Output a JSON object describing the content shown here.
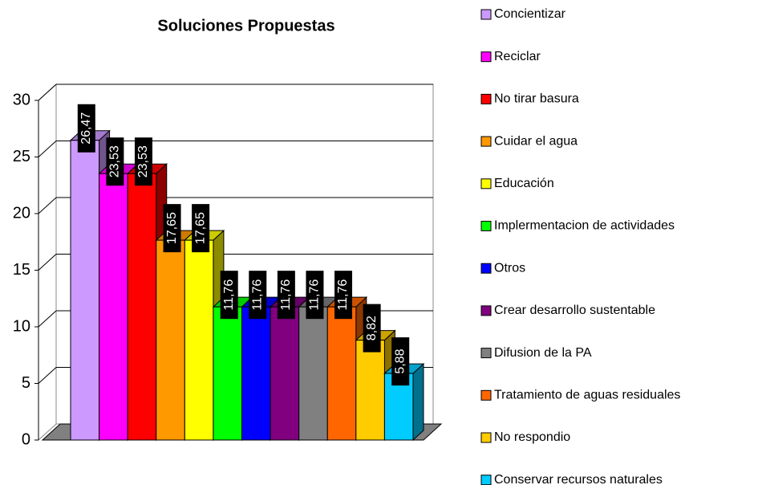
{
  "chart_data": {
    "type": "bar3d",
    "title": "Soluciones Propuestas",
    "categories": [
      "Concientizar",
      "Reciclar",
      "No tirar basura",
      "Cuidar el agua",
      "Educación",
      "Implermentacion de actividades",
      "Otros",
      "Crear desarrollo sustentable",
      "Difusion de la PA",
      "Tratamiento de aguas residuales",
      "No respondio",
      "Conservar recursos naturales"
    ],
    "values": [
      26.47,
      23.53,
      23.53,
      17.65,
      17.65,
      11.76,
      11.76,
      11.76,
      11.76,
      11.76,
      8.82,
      5.88
    ],
    "value_labels": [
      "26,47",
      "23,53",
      "23,53",
      "17,65",
      "17,65",
      "11,76",
      "11,76",
      "11,76",
      "11,76",
      "11,76",
      "8,82",
      "5,88"
    ],
    "colors": [
      "#cc99ff",
      "#ff00ff",
      "#ff0000",
      "#ff9900",
      "#ffff00",
      "#00ff00",
      "#0000ff",
      "#800080",
      "#808080",
      "#ff6600",
      "#ffcc00",
      "#00ccff"
    ],
    "ylim": [
      0,
      30
    ],
    "yticks": [
      0,
      5,
      10,
      15,
      20,
      25,
      30
    ],
    "grid": true,
    "legend": "right"
  }
}
